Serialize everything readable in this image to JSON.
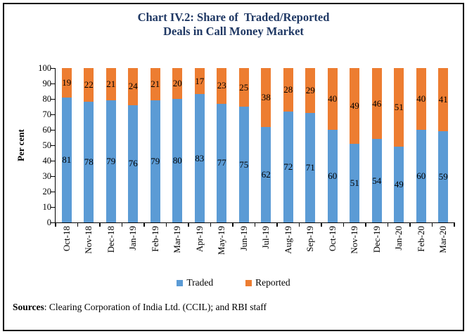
{
  "chart_data": {
    "type": "bar",
    "stacked": true,
    "title": "Chart IV.2: Share of Traded/Reported Deals in Call Money Market",
    "title_lines": [
      "Chart IV.2: Share of  Traded/Reported",
      "Deals in Call Money Market"
    ],
    "title_color": "#1F3864",
    "categories": [
      "Oct-18",
      "Nov-18",
      "Dec-18",
      "Jan-19",
      "Feb-19",
      "Mar-19",
      "Apr-19",
      "May-19",
      "Jun-19",
      "Jul-19",
      "Aug-19",
      "Sep-19",
      "Oct-19",
      "Nov-19",
      "Dec-19",
      "Jan-20",
      "Feb-20",
      "Mar-20"
    ],
    "series": [
      {
        "name": "Traded",
        "color": "#5B9BD5",
        "values": [
          81,
          78,
          79,
          76,
          79,
          80,
          83,
          77,
          75,
          62,
          72,
          71,
          60,
          51,
          54,
          49,
          60,
          59
        ]
      },
      {
        "name": "Reported",
        "color": "#ED7D31",
        "values": [
          19,
          22,
          21,
          24,
          21,
          20,
          17,
          23,
          25,
          38,
          28,
          29,
          40,
          49,
          46,
          51,
          40,
          41
        ]
      }
    ],
    "xlabel": "",
    "ylabel": "Per cent",
    "ylim": [
      0,
      100
    ],
    "y_ticks": [
      0,
      10,
      20,
      30,
      40,
      50,
      60,
      70,
      80,
      90,
      100
    ],
    "grid": false,
    "data_labels": true,
    "legend_position": "bottom"
  },
  "sources": {
    "label": "Sources",
    "text": ": Clearing Corporation of India Ltd. (CCIL); and RBI staff"
  }
}
